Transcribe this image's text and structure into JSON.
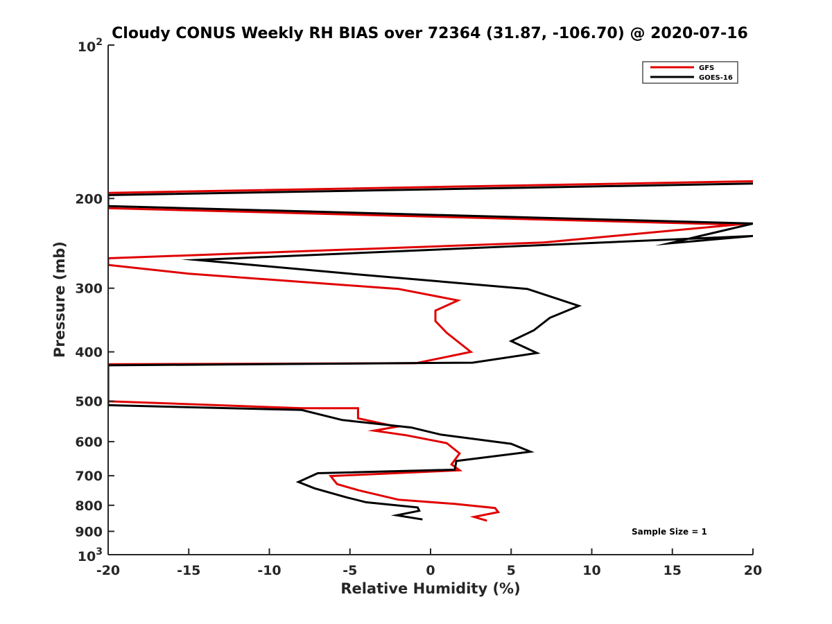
{
  "chart_data": {
    "type": "line",
    "title": "Cloudy CONUS Weekly RH BIAS over 72364 (31.87, -106.70) @ 2020-07-16",
    "xlabel": "Relative Humidity (%)",
    "ylabel": "Pressure (mb)",
    "xlim": [
      -20,
      20
    ],
    "ylim": [
      100,
      1000
    ],
    "yscale": "log",
    "y_reversed": true,
    "grid": false,
    "legend_position": "top-right",
    "x_ticks": [
      "-20",
      "-15",
      "-10",
      "-5",
      "0",
      "5",
      "10",
      "15",
      "20"
    ],
    "y_ticks": [
      {
        "value": 100,
        "base": "10",
        "exp": "2"
      },
      {
        "value": 200,
        "label": "200"
      },
      {
        "value": 300,
        "label": "300"
      },
      {
        "value": 400,
        "label": "400"
      },
      {
        "value": 500,
        "label": "500"
      },
      {
        "value": 600,
        "label": "600"
      },
      {
        "value": 700,
        "label": "700"
      },
      {
        "value": 800,
        "label": "800"
      },
      {
        "value": 900,
        "label": "900"
      },
      {
        "value": 1000,
        "base": "10",
        "exp": "3"
      }
    ],
    "annotation": "Sample Size = 1",
    "series": [
      {
        "name": "GFS",
        "color": "#e00000",
        "points": [
          [
            20,
            185
          ],
          [
            -20,
            195
          ],
          [
            -20,
            209
          ],
          [
            19,
            225
          ],
          [
            7,
            244
          ],
          [
            -20,
            262
          ],
          [
            -20,
            270
          ],
          [
            -15,
            281
          ],
          [
            -2,
            301
          ],
          [
            1.7,
            317
          ],
          [
            0.3,
            332
          ],
          [
            0.3,
            348
          ],
          [
            1,
            367
          ],
          [
            2.5,
            400
          ],
          [
            -0.9,
            421
          ],
          [
            -20,
            423
          ],
          [
            -20,
            500
          ],
          [
            -8,
            516
          ],
          [
            -4.5,
            516
          ],
          [
            -4.5,
            540
          ],
          [
            -2.1,
            561
          ],
          [
            -3.5,
            571
          ],
          [
            -1.5,
            583
          ],
          [
            1,
            604
          ],
          [
            1.8,
            633
          ],
          [
            1.3,
            665
          ],
          [
            1.8,
            683
          ],
          [
            -6.2,
            701
          ],
          [
            -5.8,
            727
          ],
          [
            -4.5,
            747
          ],
          [
            -2,
            780
          ],
          [
            1.5,
            795
          ],
          [
            4,
            810
          ],
          [
            4.2,
            825
          ],
          [
            2.7,
            843
          ],
          [
            3.5,
            858
          ]
        ]
      },
      {
        "name": "GOES-16",
        "color": "#000000",
        "points": [
          [
            20,
            187
          ],
          [
            -20,
            197
          ],
          [
            -20,
            207
          ],
          [
            20,
            224
          ],
          [
            14.8,
            245
          ],
          [
            20,
            237
          ],
          [
            -14.5,
            264
          ],
          [
            -5,
            281
          ],
          [
            6,
            301
          ],
          [
            9.2,
            325
          ],
          [
            7.4,
            343
          ],
          [
            6.4,
            363
          ],
          [
            5,
            381
          ],
          [
            6.6,
            402
          ],
          [
            2.6,
            420
          ],
          [
            -20,
            425
          ],
          [
            -20,
            509
          ],
          [
            -8,
            520
          ],
          [
            -5.5,
            544
          ],
          [
            -1.2,
            563
          ],
          [
            0.6,
            581
          ],
          [
            5,
            606
          ],
          [
            6.2,
            628
          ],
          [
            1.6,
            655
          ],
          [
            1.5,
            681
          ],
          [
            -7,
            692
          ],
          [
            -8.2,
            720
          ],
          [
            -7.2,
            741
          ],
          [
            -5.2,
            772
          ],
          [
            -4,
            789
          ],
          [
            -0.8,
            808
          ],
          [
            -0.7,
            820
          ],
          [
            -2.1,
            837
          ],
          [
            -0.5,
            853
          ]
        ]
      }
    ]
  }
}
